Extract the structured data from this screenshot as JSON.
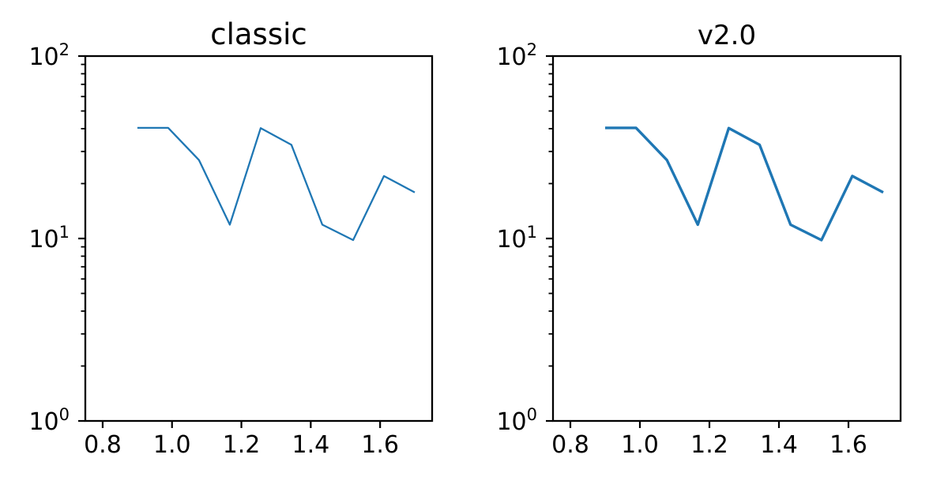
{
  "figure": {
    "background": "#ffffff",
    "text_color": "#000000"
  },
  "chart_data": [
    {
      "type": "line",
      "title": "classic",
      "x": [
        0.9,
        0.9889,
        1.0778,
        1.1667,
        1.2556,
        1.3444,
        1.4333,
        1.5222,
        1.6111,
        1.7
      ],
      "series": [
        {
          "name": "series-1",
          "values": [
            40.4,
            40.4,
            26.9,
            11.9,
            40.3,
            32.6,
            11.9,
            9.8,
            22.0,
            17.9
          ]
        }
      ],
      "xlim": [
        0.75,
        1.75
      ],
      "ylim": [
        1,
        100
      ],
      "yscale": "log",
      "xticks": [
        0.8,
        1.0,
        1.2,
        1.4,
        1.6
      ],
      "xtick_labels": [
        "0.8",
        "1.0",
        "1.2",
        "1.4",
        "1.6"
      ],
      "ytick_exponents": [
        0,
        1,
        2
      ],
      "ytick_base": "10",
      "line_color": "#1f77b4",
      "line_width": 2.3,
      "axes_color": "#000000",
      "grid": false,
      "tick_direction": "out"
    },
    {
      "type": "line",
      "title": "v2.0",
      "x": [
        0.9,
        0.9889,
        1.0778,
        1.1667,
        1.2556,
        1.3444,
        1.4333,
        1.5222,
        1.6111,
        1.7
      ],
      "series": [
        {
          "name": "series-1",
          "values": [
            40.4,
            40.4,
            26.9,
            11.9,
            40.3,
            32.6,
            11.9,
            9.8,
            22.0,
            17.9
          ]
        }
      ],
      "xlim": [
        0.75,
        1.75
      ],
      "ylim": [
        1,
        100
      ],
      "yscale": "log",
      "xticks": [
        0.8,
        1.0,
        1.2,
        1.4,
        1.6
      ],
      "xtick_labels": [
        "0.8",
        "1.0",
        "1.2",
        "1.4",
        "1.6"
      ],
      "ytick_exponents": [
        0,
        1,
        2
      ],
      "ytick_base": "10",
      "line_color": "#1f77b4",
      "line_width": 3.4,
      "axes_color": "#000000",
      "grid": false,
      "tick_direction": "out"
    }
  ]
}
